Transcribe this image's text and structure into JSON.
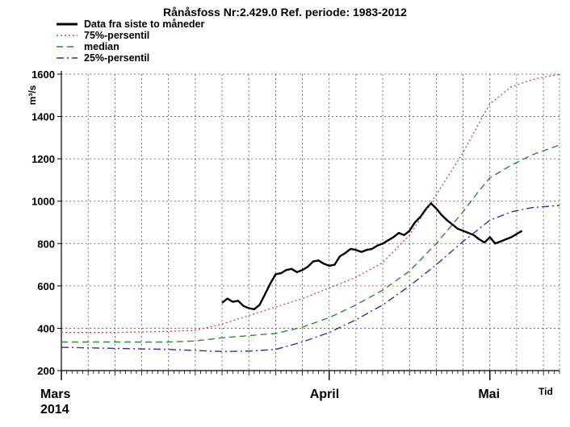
{
  "chart_data": {
    "type": "line",
    "title": "Rånåsfoss Nr:2.429.0 Ref. periode: 1983-2012",
    "ylabel": "m³/s",
    "xlabel": "Tid",
    "ylim": [
      200,
      1600
    ],
    "yticks": [
      200,
      400,
      600,
      800,
      1000,
      1200,
      1400,
      1600
    ],
    "xlim_days": [
      0,
      93
    ],
    "month_labels": [
      {
        "label": "Mars",
        "day": 0
      },
      {
        "label": "April",
        "day": 50
      },
      {
        "label": "Mai",
        "day": 80
      }
    ],
    "year_label": "2014",
    "grid": true,
    "legend_position": "top-left",
    "series": [
      {
        "name": "Data fra siste to måneder",
        "color": "#000000",
        "style": "solid",
        "x": [
          30,
          31,
          32,
          33,
          34,
          35,
          36,
          37,
          38,
          39,
          40,
          41,
          42,
          43,
          44,
          45,
          46,
          47,
          48,
          49,
          50,
          51,
          52,
          53,
          54,
          55,
          56,
          57,
          58,
          59,
          60,
          61,
          62,
          63,
          64,
          65,
          66,
          67,
          68,
          69,
          70,
          71,
          72,
          73,
          74,
          75,
          76,
          77,
          78,
          79,
          80,
          81,
          82,
          83,
          84,
          85,
          86
        ],
        "values": [
          520,
          540,
          525,
          530,
          505,
          495,
          490,
          510,
          560,
          610,
          655,
          660,
          675,
          680,
          665,
          675,
          690,
          715,
          720,
          705,
          695,
          700,
          740,
          755,
          775,
          770,
          760,
          770,
          775,
          790,
          800,
          815,
          830,
          850,
          840,
          860,
          900,
          925,
          960,
          990,
          965,
          935,
          910,
          890,
          870,
          860,
          850,
          840,
          820,
          805,
          830,
          800,
          810,
          820,
          830,
          845,
          860
        ]
      },
      {
        "name": "75%-persentil",
        "color": "#d04040",
        "style": "dotted",
        "x": [
          0,
          10,
          20,
          25,
          30,
          35,
          40,
          45,
          50,
          55,
          60,
          65,
          70,
          75,
          78,
          80,
          84,
          88,
          93
        ],
        "values": [
          380,
          380,
          385,
          390,
          420,
          460,
          500,
          540,
          590,
          640,
          710,
          840,
          1030,
          1230,
          1370,
          1460,
          1540,
          1575,
          1600
        ]
      },
      {
        "name": "median",
        "color": "#2e8a2e",
        "style": "dashed",
        "x": [
          0,
          10,
          20,
          25,
          30,
          35,
          40,
          45,
          50,
          55,
          60,
          65,
          70,
          75,
          78,
          80,
          84,
          88,
          93
        ],
        "values": [
          335,
          335,
          335,
          340,
          355,
          365,
          375,
          405,
          450,
          510,
          580,
          670,
          800,
          950,
          1050,
          1110,
          1170,
          1220,
          1265
        ]
      },
      {
        "name": "25%-persentil",
        "color": "#3030a0",
        "style": "dashdot",
        "x": [
          0,
          10,
          20,
          25,
          30,
          35,
          40,
          45,
          50,
          55,
          60,
          65,
          70,
          75,
          78,
          80,
          84,
          88,
          93
        ],
        "values": [
          310,
          305,
          300,
          295,
          290,
          292,
          300,
          335,
          380,
          440,
          510,
          600,
          700,
          810,
          870,
          910,
          950,
          970,
          980
        ]
      }
    ]
  }
}
